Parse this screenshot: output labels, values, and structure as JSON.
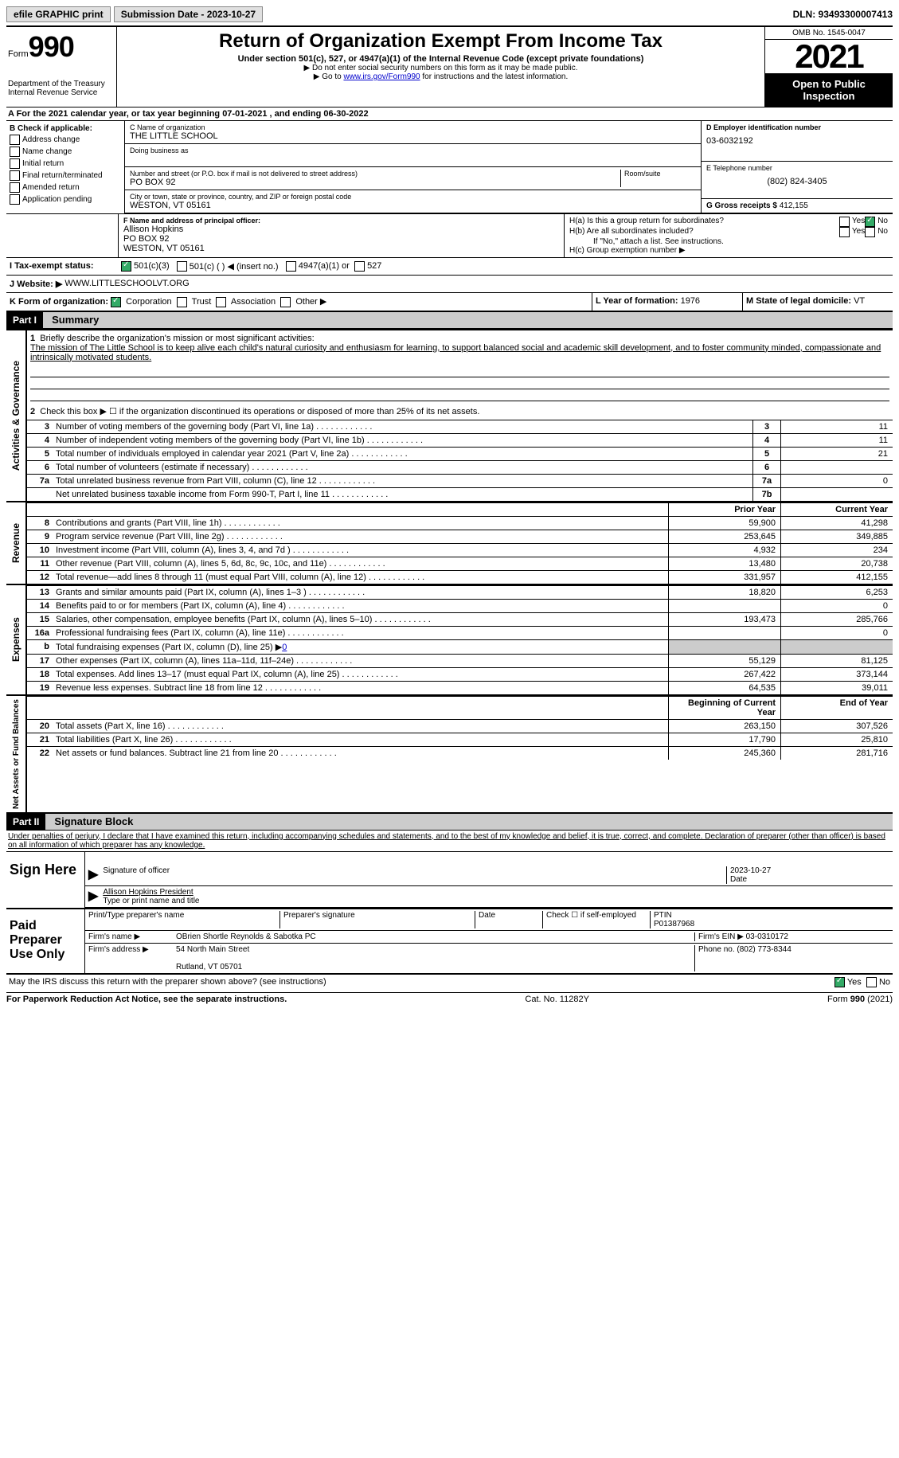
{
  "topbar": {
    "efile": "efile GRAPHIC print",
    "submission_label": "Submission Date - 2023-10-27",
    "dln_label": "DLN: 93493300007413"
  },
  "header": {
    "form_word": "Form",
    "form_number": "990",
    "dept": "Department of the Treasury Internal Revenue Service",
    "title": "Return of Organization Exempt From Income Tax",
    "subtitle": "Under section 501(c), 527, or 4947(a)(1) of the Internal Revenue Code (except private foundations)",
    "note1": "▶ Do not enter social security numbers on this form as it may be made public.",
    "note2_pre": "▶ Go to ",
    "note2_link": "www.irs.gov/Form990",
    "note2_post": " for instructions and the latest information.",
    "omb": "OMB No. 1545-0047",
    "year": "2021",
    "inspection": "Open to Public Inspection"
  },
  "section_a": "A For the 2021 calendar year, or tax year beginning 07-01-2021   , and ending 06-30-2022",
  "b": {
    "label": "B Check if applicable:",
    "items": [
      "Address change",
      "Name change",
      "Initial return",
      "Final return/terminated",
      "Amended return",
      "Application pending"
    ]
  },
  "c": {
    "name_label": "C Name of organization",
    "name": "THE LITTLE SCHOOL",
    "dba_label": "Doing business as",
    "addr_label": "Number and street (or P.O. box if mail is not delivered to street address)",
    "room_label": "Room/suite",
    "addr": "PO BOX 92",
    "city_label": "City or town, state or province, country, and ZIP or foreign postal code",
    "city": "WESTON, VT  05161"
  },
  "d": {
    "label": "D Employer identification number",
    "val": "03-6032192"
  },
  "e": {
    "label": "E Telephone number",
    "val": "(802) 824-3405"
  },
  "g": {
    "label": "G Gross receipts $",
    "val": "412,155"
  },
  "f": {
    "label": "F  Name and address of principal officer:",
    "name": "Allison Hopkins",
    "addr1": "PO BOX 92",
    "addr2": "WESTON, VT  05161"
  },
  "h": {
    "a": "H(a)  Is this a group return for subordinates?",
    "b": "H(b)  Are all subordinates included?",
    "b_note": "If \"No,\" attach a list. See instructions.",
    "c": "H(c)  Group exemption number ▶",
    "yes": "Yes",
    "no": "No"
  },
  "i": {
    "label": "I   Tax-exempt status:",
    "o1": "501(c)(3)",
    "o2": "501(c) (  ) ◀ (insert no.)",
    "o3": "4947(a)(1) or",
    "o4": "527"
  },
  "j": {
    "label": "J   Website: ▶",
    "val": "WWW.LITTLESCHOOLVT.ORG"
  },
  "k": {
    "label": "K Form of organization:",
    "o1": "Corporation",
    "o2": "Trust",
    "o3": "Association",
    "o4": "Other ▶"
  },
  "l": {
    "label": "L Year of formation:",
    "val": "1976"
  },
  "m": {
    "label": "M State of legal domicile:",
    "val": "VT"
  },
  "part1": {
    "num": "Part I",
    "title": "Summary"
  },
  "summary": {
    "line1_label": "Briefly describe the organization's mission or most significant activities:",
    "line1_text": "The mission of The Little School is to keep alive each child's natural curiosity and enthusiasm for learning, to support balanced social and academic skill development, and to foster community minded, compassionate and intrinsically motivated students.",
    "line2": "Check this box ▶ ☐  if the organization discontinued its operations or disposed of more than 25% of its net assets.",
    "rows_gov": [
      {
        "n": "3",
        "t": "Number of voting members of the governing body (Part VI, line 1a)",
        "ln": "3",
        "v": "11"
      },
      {
        "n": "4",
        "t": "Number of independent voting members of the governing body (Part VI, line 1b)",
        "ln": "4",
        "v": "11"
      },
      {
        "n": "5",
        "t": "Total number of individuals employed in calendar year 2021 (Part V, line 2a)",
        "ln": "5",
        "v": "21"
      },
      {
        "n": "6",
        "t": "Total number of volunteers (estimate if necessary)",
        "ln": "6",
        "v": ""
      },
      {
        "n": "7a",
        "t": "Total unrelated business revenue from Part VIII, column (C), line 12",
        "ln": "7a",
        "v": "0"
      },
      {
        "n": "",
        "t": "Net unrelated business taxable income from Form 990-T, Part I, line 11",
        "ln": "7b",
        "v": ""
      }
    ],
    "col_prior": "Prior Year",
    "col_current": "Current Year",
    "rows_rev": [
      {
        "n": "8",
        "t": "Contributions and grants (Part VIII, line 1h)",
        "p": "59,900",
        "c": "41,298"
      },
      {
        "n": "9",
        "t": "Program service revenue (Part VIII, line 2g)",
        "p": "253,645",
        "c": "349,885"
      },
      {
        "n": "10",
        "t": "Investment income (Part VIII, column (A), lines 3, 4, and 7d )",
        "p": "4,932",
        "c": "234"
      },
      {
        "n": "11",
        "t": "Other revenue (Part VIII, column (A), lines 5, 6d, 8c, 9c, 10c, and 11e)",
        "p": "13,480",
        "c": "20,738"
      },
      {
        "n": "12",
        "t": "Total revenue—add lines 8 through 11 (must equal Part VIII, column (A), line 12)",
        "p": "331,957",
        "c": "412,155"
      }
    ],
    "rows_exp": [
      {
        "n": "13",
        "t": "Grants and similar amounts paid (Part IX, column (A), lines 1–3 )",
        "p": "18,820",
        "c": "6,253"
      },
      {
        "n": "14",
        "t": "Benefits paid to or for members (Part IX, column (A), line 4)",
        "p": "",
        "c": "0"
      },
      {
        "n": "15",
        "t": "Salaries, other compensation, employee benefits (Part IX, column (A), lines 5–10)",
        "p": "193,473",
        "c": "285,766"
      },
      {
        "n": "16a",
        "t": "Professional fundraising fees (Part IX, column (A), line 11e)",
        "p": "",
        "c": "0"
      },
      {
        "n": "b",
        "t": "Total fundraising expenses (Part IX, column (D), line 25) ▶",
        "p": "shade",
        "c": "shade",
        "extra": "0"
      },
      {
        "n": "17",
        "t": "Other expenses (Part IX, column (A), lines 11a–11d, 11f–24e)",
        "p": "55,129",
        "c": "81,125"
      },
      {
        "n": "18",
        "t": "Total expenses. Add lines 13–17 (must equal Part IX, column (A), line 25)",
        "p": "267,422",
        "c": "373,144"
      },
      {
        "n": "19",
        "t": "Revenue less expenses. Subtract line 18 from line 12",
        "p": "64,535",
        "c": "39,011"
      }
    ],
    "col_begin": "Beginning of Current Year",
    "col_end": "End of Year",
    "rows_net": [
      {
        "n": "20",
        "t": "Total assets (Part X, line 16)",
        "p": "263,150",
        "c": "307,526"
      },
      {
        "n": "21",
        "t": "Total liabilities (Part X, line 26)",
        "p": "17,790",
        "c": "25,810"
      },
      {
        "n": "22",
        "t": "Net assets or fund balances. Subtract line 21 from line 20",
        "p": "245,360",
        "c": "281,716"
      }
    ]
  },
  "sides": {
    "gov": "Activities & Governance",
    "rev": "Revenue",
    "exp": "Expenses",
    "net": "Net Assets or Fund Balances"
  },
  "part2": {
    "num": "Part II",
    "title": "Signature Block"
  },
  "sig": {
    "perjury": "Under penalties of perjury, I declare that I have examined this return, including accompanying schedules and statements, and to the best of my knowledge and belief, it is true, correct, and complete. Declaration of preparer (other than officer) is based on all information of which preparer has any knowledge.",
    "sign_here": "Sign Here",
    "sig_officer": "Signature of officer",
    "date": "Date",
    "sig_date": "2023-10-27",
    "name_title": "Allison Hopkins  President",
    "name_title_label": "Type or print name and title",
    "paid": "Paid Preparer Use Only",
    "print_name": "Print/Type preparer's name",
    "prep_sig": "Preparer's signature",
    "check_if": "Check ☐ if self-employed",
    "ptin_label": "PTIN",
    "ptin": "P01387968",
    "firm_name_label": "Firm's name    ▶",
    "firm_name": "OBrien Shortle Reynolds & Sabotka PC",
    "firm_ein_label": "Firm's EIN ▶",
    "firm_ein": "03-0310172",
    "firm_addr_label": "Firm's address ▶",
    "firm_addr1": "54 North Main Street",
    "firm_addr2": "Rutland, VT  05701",
    "phone_label": "Phone no.",
    "phone": "(802) 773-8344",
    "discuss": "May the IRS discuss this return with the preparer shown above? (see instructions)"
  },
  "footer": {
    "paperwork": "For Paperwork Reduction Act Notice, see the separate instructions.",
    "cat": "Cat. No. 11282Y",
    "form": "Form 990 (2021)"
  }
}
